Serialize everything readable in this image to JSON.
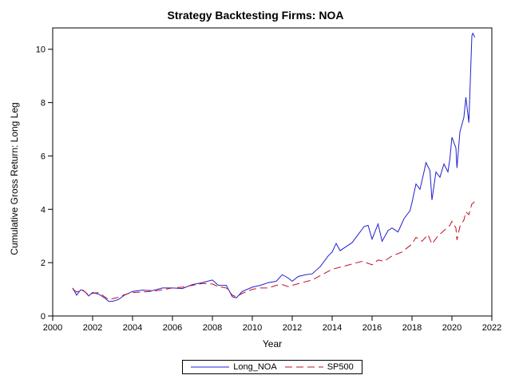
{
  "chart_data": {
    "type": "line",
    "title": "Strategy Backtesting  Firms: NOA",
    "xlabel": "Year",
    "ylabel": "Cumulative Gross Return: Long Leg",
    "xlim": [
      2000,
      2022
    ],
    "ylim": [
      0,
      10.8
    ],
    "x_ticks": [
      "2000",
      "2002",
      "2004",
      "2006",
      "2008",
      "2010",
      "2012",
      "2014",
      "2016",
      "2018",
      "2020",
      "2022"
    ],
    "y_ticks": [
      "0",
      "2",
      "4",
      "6",
      "8",
      "10"
    ],
    "legend_position": "bottom",
    "series": [
      {
        "name": "Long_NOA",
        "color": "#2020d0",
        "style": "solid",
        "points": [
          [
            2001.0,
            1.05
          ],
          [
            2001.2,
            0.78
          ],
          [
            2001.4,
            0.98
          ],
          [
            2001.6,
            0.92
          ],
          [
            2001.8,
            0.75
          ],
          [
            2002.0,
            0.88
          ],
          [
            2002.3,
            0.82
          ],
          [
            2002.6,
            0.68
          ],
          [
            2002.8,
            0.55
          ],
          [
            2003.0,
            0.55
          ],
          [
            2003.3,
            0.62
          ],
          [
            2003.6,
            0.78
          ],
          [
            2004.0,
            0.92
          ],
          [
            2004.5,
            0.97
          ],
          [
            2005.0,
            0.95
          ],
          [
            2005.5,
            1.05
          ],
          [
            2006.0,
            1.05
          ],
          [
            2006.5,
            1.03
          ],
          [
            2007.0,
            1.18
          ],
          [
            2007.5,
            1.25
          ],
          [
            2008.0,
            1.35
          ],
          [
            2008.3,
            1.15
          ],
          [
            2008.7,
            1.15
          ],
          [
            2009.0,
            0.72
          ],
          [
            2009.2,
            0.68
          ],
          [
            2009.5,
            0.92
          ],
          [
            2010.0,
            1.08
          ],
          [
            2010.4,
            1.15
          ],
          [
            2010.8,
            1.25
          ],
          [
            2011.2,
            1.3
          ],
          [
            2011.5,
            1.55
          ],
          [
            2011.8,
            1.42
          ],
          [
            2012.0,
            1.3
          ],
          [
            2012.3,
            1.48
          ],
          [
            2012.7,
            1.55
          ],
          [
            2013.0,
            1.58
          ],
          [
            2013.4,
            1.85
          ],
          [
            2013.8,
            2.25
          ],
          [
            2014.0,
            2.4
          ],
          [
            2014.2,
            2.72
          ],
          [
            2014.4,
            2.45
          ],
          [
            2014.7,
            2.6
          ],
          [
            2015.0,
            2.75
          ],
          [
            2015.3,
            3.05
          ],
          [
            2015.6,
            3.35
          ],
          [
            2015.8,
            3.4
          ],
          [
            2016.0,
            2.88
          ],
          [
            2016.3,
            3.45
          ],
          [
            2016.5,
            2.8
          ],
          [
            2016.8,
            3.2
          ],
          [
            2017.0,
            3.3
          ],
          [
            2017.3,
            3.15
          ],
          [
            2017.6,
            3.65
          ],
          [
            2017.9,
            3.95
          ],
          [
            2018.0,
            4.25
          ],
          [
            2018.2,
            4.95
          ],
          [
            2018.4,
            4.75
          ],
          [
            2018.6,
            5.4
          ],
          [
            2018.7,
            5.75
          ],
          [
            2018.9,
            5.45
          ],
          [
            2019.0,
            4.35
          ],
          [
            2019.2,
            5.4
          ],
          [
            2019.4,
            5.2
          ],
          [
            2019.6,
            5.7
          ],
          [
            2019.8,
            5.4
          ],
          [
            2019.9,
            5.9
          ],
          [
            2020.0,
            6.7
          ],
          [
            2020.2,
            6.3
          ],
          [
            2020.25,
            5.55
          ],
          [
            2020.4,
            6.9
          ],
          [
            2020.6,
            7.45
          ],
          [
            2020.7,
            8.2
          ],
          [
            2020.85,
            7.25
          ],
          [
            2021.0,
            10.5
          ],
          [
            2021.05,
            10.6
          ],
          [
            2021.15,
            10.45
          ]
        ]
      },
      {
        "name": "SP500",
        "color": "#c01020",
        "style": "dashed",
        "points": [
          [
            2001.0,
            1.0
          ],
          [
            2001.2,
            0.9
          ],
          [
            2001.5,
            0.98
          ],
          [
            2001.8,
            0.78
          ],
          [
            2002.0,
            0.85
          ],
          [
            2002.3,
            0.88
          ],
          [
            2002.6,
            0.72
          ],
          [
            2002.8,
            0.62
          ],
          [
            2003.0,
            0.65
          ],
          [
            2003.3,
            0.7
          ],
          [
            2003.6,
            0.8
          ],
          [
            2004.0,
            0.88
          ],
          [
            2004.5,
            0.9
          ],
          [
            2005.0,
            0.92
          ],
          [
            2005.5,
            0.98
          ],
          [
            2006.0,
            1.05
          ],
          [
            2006.5,
            1.08
          ],
          [
            2007.0,
            1.15
          ],
          [
            2007.5,
            1.22
          ],
          [
            2008.0,
            1.2
          ],
          [
            2008.3,
            1.1
          ],
          [
            2008.7,
            1.05
          ],
          [
            2009.0,
            0.78
          ],
          [
            2009.2,
            0.72
          ],
          [
            2009.5,
            0.85
          ],
          [
            2010.0,
            1.0
          ],
          [
            2010.4,
            1.05
          ],
          [
            2010.8,
            1.05
          ],
          [
            2011.2,
            1.15
          ],
          [
            2011.5,
            1.18
          ],
          [
            2011.8,
            1.1
          ],
          [
            2012.0,
            1.15
          ],
          [
            2012.5,
            1.25
          ],
          [
            2013.0,
            1.35
          ],
          [
            2013.5,
            1.55
          ],
          [
            2014.0,
            1.75
          ],
          [
            2014.5,
            1.85
          ],
          [
            2015.0,
            1.95
          ],
          [
            2015.5,
            2.05
          ],
          [
            2016.0,
            1.92
          ],
          [
            2016.3,
            2.1
          ],
          [
            2016.6,
            2.05
          ],
          [
            2017.0,
            2.25
          ],
          [
            2017.5,
            2.4
          ],
          [
            2018.0,
            2.7
          ],
          [
            2018.2,
            2.95
          ],
          [
            2018.5,
            2.8
          ],
          [
            2018.8,
            3.05
          ],
          [
            2019.0,
            2.7
          ],
          [
            2019.3,
            3.0
          ],
          [
            2019.6,
            3.2
          ],
          [
            2019.9,
            3.4
          ],
          [
            2020.0,
            3.55
          ],
          [
            2020.2,
            3.3
          ],
          [
            2020.25,
            2.85
          ],
          [
            2020.4,
            3.35
          ],
          [
            2020.6,
            3.6
          ],
          [
            2020.7,
            3.9
          ],
          [
            2020.85,
            3.8
          ],
          [
            2021.0,
            4.2
          ],
          [
            2021.1,
            4.25
          ],
          [
            2021.15,
            4.35
          ]
        ]
      }
    ]
  }
}
